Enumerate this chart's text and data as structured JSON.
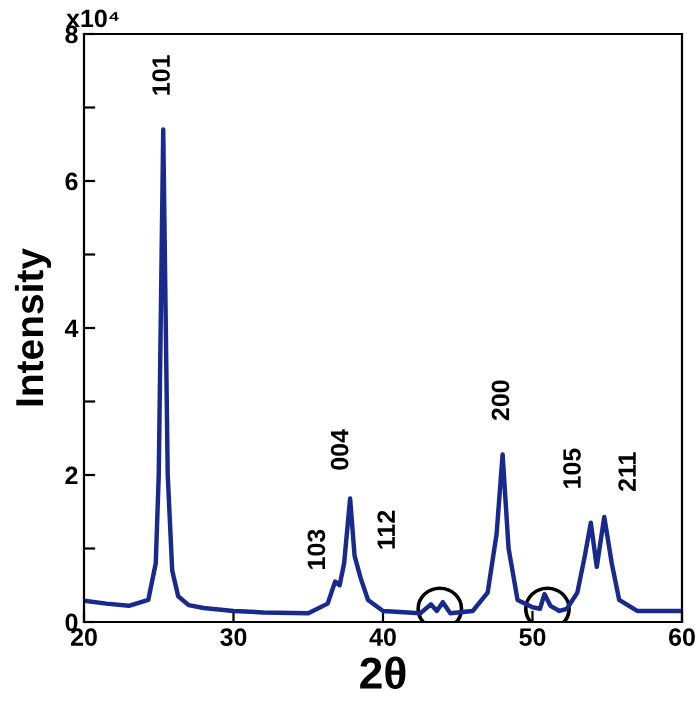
{
  "chart_data": {
    "type": "line",
    "xlabel": "2θ",
    "ylabel": "Intensity",
    "x": [
      20,
      21.5,
      23,
      24.3,
      24.8,
      25.0,
      25.3,
      25.6,
      25.9,
      26.3,
      27,
      28,
      30,
      32,
      35,
      36.3,
      36.8,
      37.1,
      37.4,
      37.8,
      38.1,
      38.5,
      39,
      40,
      42.5,
      43.2,
      43.6,
      44.0,
      44.5,
      46,
      47,
      47.6,
      48.0,
      48.4,
      49,
      50,
      50.5,
      50.8,
      51.2,
      51.8,
      52.3,
      53,
      53.5,
      53.9,
      54.3,
      54.8,
      55.3,
      55.8,
      57,
      60
    ],
    "series": [
      {
        "color": "#1a2a8c",
        "values": [
          0.29,
          0.25,
          0.22,
          0.3,
          0.8,
          2.0,
          6.7,
          2.0,
          0.7,
          0.35,
          0.23,
          0.19,
          0.15,
          0.13,
          0.12,
          0.25,
          0.55,
          0.5,
          0.8,
          1.68,
          0.9,
          0.6,
          0.3,
          0.15,
          0.12,
          0.24,
          0.15,
          0.27,
          0.12,
          0.15,
          0.4,
          1.2,
          2.28,
          1.0,
          0.3,
          0.2,
          0.18,
          0.38,
          0.22,
          0.15,
          0.18,
          0.4,
          0.9,
          1.35,
          0.75,
          1.43,
          0.8,
          0.3,
          0.15,
          0.15
        ]
      }
    ],
    "xlim": [
      20,
      60
    ],
    "ylim": [
      0,
      8
    ],
    "xticks": [
      20,
      30,
      40,
      50,
      60
    ],
    "yticks": [
      0,
      {
        "value": 1,
        "label": null
      },
      2,
      {
        "value": 3,
        "label": null
      },
      4,
      {
        "value": 5,
        "label": null
      },
      6,
      {
        "value": 7,
        "label": null
      },
      8
    ],
    "annotations": [
      "x10⁴",
      {
        "text": "101",
        "x": 25.3,
        "y": 6.7
      },
      {
        "text": "103",
        "x": 36.8,
        "y": 0.55
      },
      {
        "text": "004",
        "x": 37.8,
        "y": 1.68
      },
      {
        "text": "112",
        "x": 38.5,
        "y": 0.6
      },
      {
        "text": "200",
        "x": 48.0,
        "y": 2.28
      },
      {
        "text": "105",
        "x": 53.9,
        "y": 1.35
      },
      {
        "text": "211",
        "x": 54.8,
        "y": 1.43
      }
    ],
    "grid": false,
    "legend": false,
    "marker": "none",
    "line_style": "solid"
  }
}
